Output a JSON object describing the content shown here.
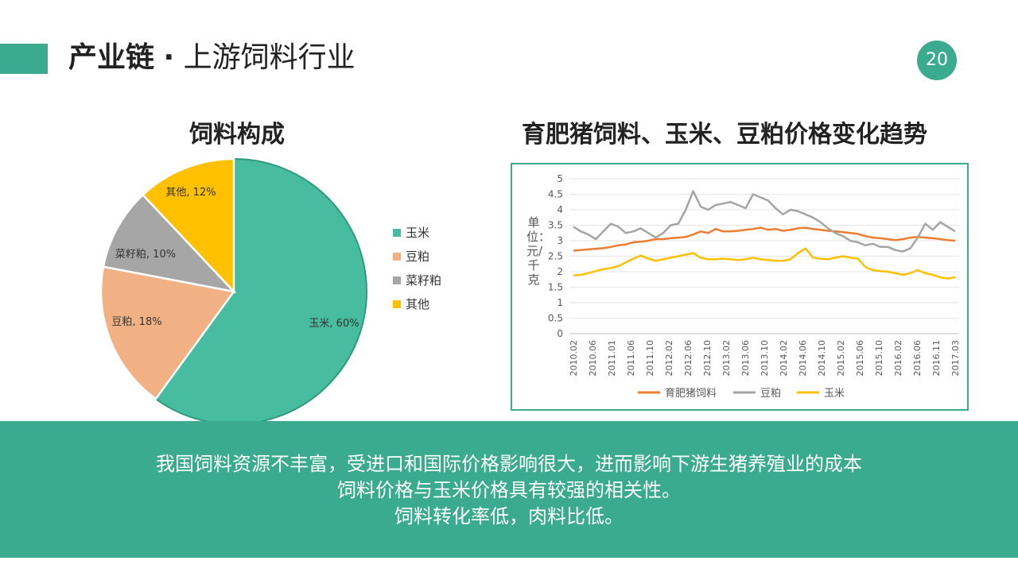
{
  "header": {
    "title_bold": "产业链",
    "title_separator": "·",
    "title_rest": "上游饲料行业",
    "page_number": "20"
  },
  "colors": {
    "accent": "#3aab8e",
    "corn": "#47bc9e",
    "soymeal": "#f2b184",
    "rapeseed": "#a6a6a6",
    "other": "#ffc000",
    "line_feed": "#ed7d31",
    "line_soymeal": "#a5a5a5",
    "line_corn": "#ffc000"
  },
  "pie": {
    "heading": "饲料构成",
    "legend": [
      "玉米",
      "豆粕",
      "菜籽粕",
      "其他"
    ]
  },
  "line": {
    "heading": "育肥猪饲料、玉米、豆粕价格变化趋势",
    "ylabel": "单位：元/千克"
  },
  "bottom": {
    "line1": "我国饲料资源不丰富，受进口和国际价格影响很大，进而影响下游生猪养殖业的成本",
    "line2": "饲料价格与玉米价格具有较强的相关性。",
    "line3": "饲料转化率低，肉料比低。"
  },
  "chart_data": [
    {
      "type": "pie",
      "title": "饲料构成",
      "slices": [
        {
          "name": "玉米",
          "value": 60,
          "label": "玉米, 60%",
          "color": "#47bc9e"
        },
        {
          "name": "豆粕",
          "value": 18,
          "label": "豆粕, 18%",
          "color": "#f2b184"
        },
        {
          "name": "菜籽粕",
          "value": 10,
          "label": "菜籽粕, 10%",
          "color": "#a6a6a6"
        },
        {
          "name": "其他",
          "value": 12,
          "label": "其他, 12%",
          "color": "#ffc000"
        }
      ],
      "legend_position": "right"
    },
    {
      "type": "line",
      "title": "育肥猪饲料、玉米、豆粕价格变化趋势",
      "ylabel": "单位：元/千克",
      "ylim": [
        0,
        5
      ],
      "yticks": [
        "0",
        "0.5",
        "1",
        "1.5",
        "2",
        "2.5",
        "3",
        "3.5",
        "4",
        "4.5",
        "5"
      ],
      "grid": true,
      "legend_position": "bottom",
      "xticks": [
        "2010.02",
        "2010.06",
        "2011.01",
        "2011.06",
        "2011.10",
        "2012.02",
        "2012.06",
        "2012.10",
        "2013.02",
        "2013.06",
        "2013.10",
        "2014.02",
        "2014.06",
        "2014.10",
        "2015.02",
        "2015.06",
        "2015.10",
        "2016.02",
        "2016.06",
        "2016.11",
        "2017.03"
      ],
      "series": [
        {
          "name": "育肥猪饲料",
          "color": "#ed7d31",
          "values": [
            2.68,
            2.7,
            2.72,
            2.74,
            2.76,
            2.8,
            2.85,
            2.88,
            2.95,
            2.97,
            3.0,
            3.05,
            3.05,
            3.08,
            3.1,
            3.12,
            3.2,
            3.3,
            3.25,
            3.38,
            3.3,
            3.3,
            3.32,
            3.35,
            3.38,
            3.42,
            3.35,
            3.38,
            3.32,
            3.35,
            3.4,
            3.42,
            3.38,
            3.35,
            3.32,
            3.3,
            3.28,
            3.25,
            3.22,
            3.15,
            3.1,
            3.08,
            3.05,
            3.02,
            3.05,
            3.1,
            3.12,
            3.1,
            3.08,
            3.05,
            3.02,
            3.0
          ]
        },
        {
          "name": "豆粕",
          "color": "#a5a5a5",
          "values": [
            3.45,
            3.3,
            3.2,
            3.05,
            3.3,
            3.55,
            3.45,
            3.25,
            3.3,
            3.4,
            3.25,
            3.1,
            3.25,
            3.5,
            3.55,
            4.0,
            4.6,
            4.1,
            4.0,
            4.15,
            4.2,
            4.25,
            4.15,
            4.05,
            4.5,
            4.4,
            4.3,
            4.05,
            3.85,
            4.0,
            3.95,
            3.85,
            3.75,
            3.6,
            3.4,
            3.25,
            3.15,
            3.0,
            2.95,
            2.85,
            2.9,
            2.8,
            2.8,
            2.7,
            2.65,
            2.75,
            3.1,
            3.55,
            3.35,
            3.6,
            3.45,
            3.3
          ]
        },
        {
          "name": "玉米",
          "color": "#ffc000",
          "values": [
            1.88,
            1.9,
            1.95,
            2.02,
            2.08,
            2.12,
            2.18,
            2.3,
            2.42,
            2.52,
            2.42,
            2.35,
            2.4,
            2.45,
            2.5,
            2.55,
            2.6,
            2.45,
            2.4,
            2.4,
            2.42,
            2.4,
            2.38,
            2.4,
            2.45,
            2.4,
            2.38,
            2.35,
            2.35,
            2.4,
            2.6,
            2.75,
            2.45,
            2.42,
            2.4,
            2.45,
            2.5,
            2.45,
            2.42,
            2.15,
            2.05,
            2.02,
            2.0,
            1.95,
            1.9,
            1.95,
            2.05,
            1.95,
            1.9,
            1.82,
            1.78,
            1.82
          ]
        }
      ]
    }
  ]
}
